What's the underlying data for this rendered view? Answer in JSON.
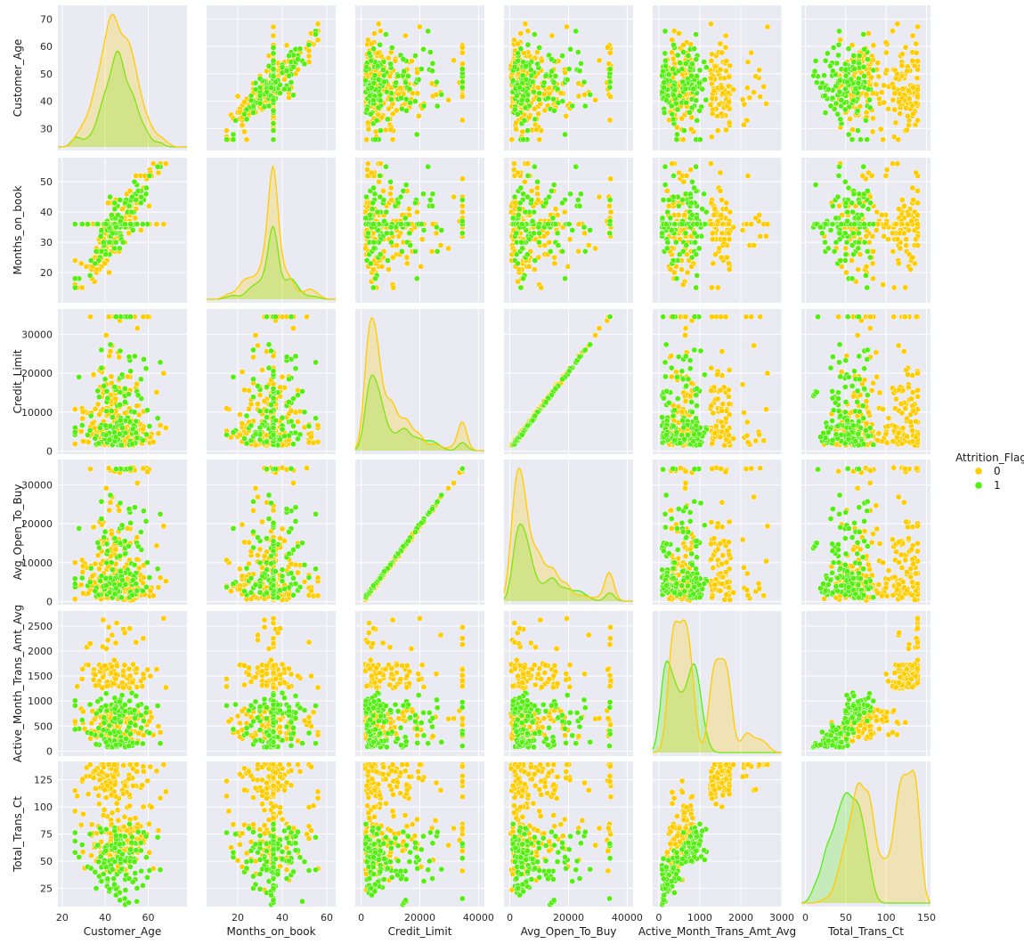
{
  "chart_data": {
    "type": "scatter",
    "subtype": "pairplot",
    "variables": [
      "Customer_Age",
      "Months_on_book",
      "Credit_Limit",
      "Avg_Open_To_Buy",
      "Active_Month_Trans_Amt_Avg",
      "Total_Trans_Ct"
    ],
    "axis_labels": [
      "Customer_Age",
      "Months_on_book",
      "Credit_Limit",
      "Avg_Open_To_Buy",
      "Active_Month_Trans_Amt_Avg",
      "Total_Trans_Ct"
    ],
    "x_ticks": [
      [
        20,
        40,
        60
      ],
      [
        20,
        40,
        60
      ],
      [
        0,
        20000,
        40000
      ],
      [
        0,
        20000,
        40000
      ],
      [
        0,
        1000,
        2000,
        3000
      ],
      [
        0,
        50,
        100,
        150
      ]
    ],
    "y_ticks": [
      [
        30,
        40,
        50,
        60,
        70
      ],
      [
        20,
        30,
        40,
        50
      ],
      [
        0,
        10000,
        20000,
        30000
      ],
      [
        0,
        10000,
        20000,
        30000
      ],
      [
        0,
        500,
        1000,
        1500,
        2000,
        2500
      ],
      [
        25,
        50,
        75,
        100,
        125
      ]
    ],
    "x_ranges": [
      [
        18,
        78
      ],
      [
        6,
        64
      ],
      [
        -2000,
        42000
      ],
      [
        -2000,
        42000
      ],
      [
        -150,
        3000
      ],
      [
        -5,
        155
      ]
    ],
    "y_ranges": [
      [
        22,
        75
      ],
      [
        10,
        58
      ],
      [
        -800,
        36500
      ],
      [
        -800,
        36500
      ],
      [
        -100,
        2800
      ],
      [
        8,
        142
      ]
    ],
    "grid": true,
    "legend_position": "right",
    "legend": {
      "title": "Attrition_Flag",
      "entries": [
        {
          "label": "0",
          "color": "#FFCC00"
        },
        {
          "label": "1",
          "color": "#55EE11"
        }
      ]
    },
    "colors": {
      "background": "#EAEAF2",
      "grid": "#FFFFFF",
      "class0": "#FFCC00",
      "class1": "#55EE11"
    },
    "diagonal": "kde",
    "off_diagonal": "scatter",
    "series": [
      {
        "name": "0",
        "summary": {
          "Customer_Age": {
            "min": 26,
            "max": 73,
            "peak": 46
          },
          "Months_on_book": {
            "min": 13,
            "max": 56,
            "peak": 36
          },
          "Credit_Limit": {
            "min": 1438,
            "max": 34516,
            "peak": 2500
          },
          "Avg_Open_To_Buy": {
            "min": 3,
            "max": 34516,
            "peak": 1500
          },
          "Active_Month_Trans_Amt_Avg": {
            "min": 50,
            "max": 2700,
            "peak": 430
          },
          "Total_Trans_Ct": {
            "min": 11,
            "max": 139,
            "peak": 75
          }
        }
      },
      {
        "name": "1",
        "summary": {
          "Customer_Age": {
            "min": 26,
            "max": 68,
            "peak": 46
          },
          "Months_on_book": {
            "min": 13,
            "max": 56,
            "peak": 36
          },
          "Credit_Limit": {
            "min": 1438,
            "max": 34516,
            "peak": 2500
          },
          "Avg_Open_To_Buy": {
            "min": 3,
            "max": 34516,
            "peak": 2500
          },
          "Active_Month_Trans_Amt_Avg": {
            "min": 50,
            "max": 1250,
            "peak": 230
          },
          "Total_Trans_Ct": {
            "min": 10,
            "max": 94,
            "peak": 42
          }
        }
      }
    ]
  }
}
